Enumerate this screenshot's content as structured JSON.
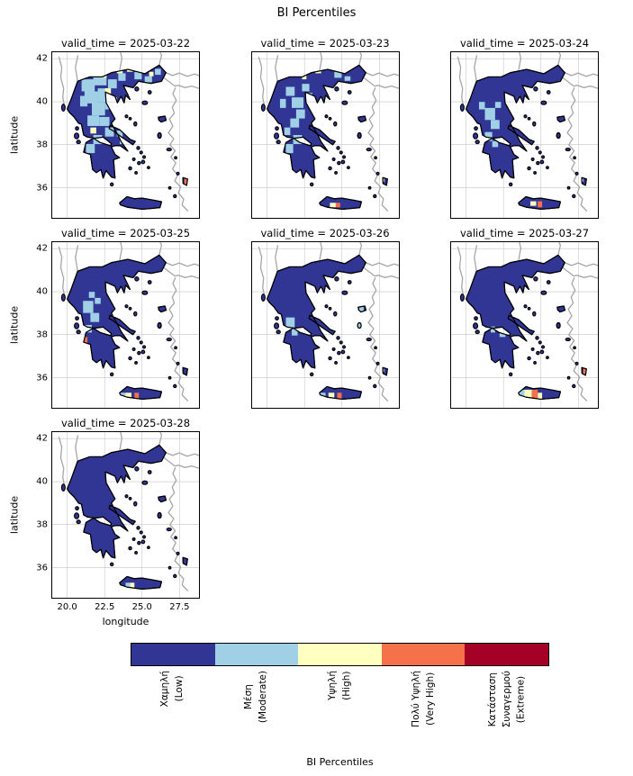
{
  "figure": {
    "title": "BI Percentiles",
    "background": "#ffffff"
  },
  "axes": {
    "xlabel": "longitude",
    "ylabel": "latitude",
    "xticks": [
      {
        "label": "20.0",
        "value": 20.0
      },
      {
        "label": "22.5",
        "value": 22.5
      },
      {
        "label": "25.0",
        "value": 25.0
      },
      {
        "label": "27.5",
        "value": 27.5
      }
    ],
    "yticks": [
      {
        "label": "42",
        "value": 42
      },
      {
        "label": "40",
        "value": 40
      },
      {
        "label": "38",
        "value": 38
      },
      {
        "label": "36",
        "value": 36
      }
    ]
  },
  "map_colors": {
    "land": "#313695",
    "coast": "#000000",
    "neighbor": "#a6a6a6",
    "grid": "#c4c4c4",
    "sea": "#ffffff"
  },
  "colorbar": {
    "label": "BI Percentiles",
    "classes": [
      {
        "key": "low",
        "color": "#313695",
        "lines": [
          "Χαμηλή",
          "(Low)"
        ]
      },
      {
        "key": "moderate",
        "color": "#9fd0e6",
        "lines": [
          "Μέση",
          "(Moderate)"
        ]
      },
      {
        "key": "high",
        "color": "#ffffbf",
        "lines": [
          "Υψηλή",
          "(High)"
        ]
      },
      {
        "key": "very-high",
        "color": "#f5714a",
        "lines": [
          "Πολύ Υψηλή",
          "(Very High)"
        ]
      },
      {
        "key": "extreme",
        "color": "#a50026",
        "lines": [
          "Κατάσταση",
          "Συναγερμού",
          "(Extreme)"
        ]
      }
    ]
  },
  "panels": [
    {
      "date": "2025-03-22",
      "title": "valid_time = 2025-03-22",
      "row": 0,
      "col": 0,
      "show_yticks": true,
      "show_xticks": false,
      "patches": [
        [
          19,
          29,
          5,
          7,
          1
        ],
        [
          20,
          18,
          9,
          8,
          1
        ],
        [
          28,
          15,
          9,
          7,
          1
        ],
        [
          22,
          26,
          9,
          8,
          1
        ],
        [
          31,
          24,
          8,
          9,
          1
        ],
        [
          27,
          33,
          9,
          9,
          1
        ],
        [
          36,
          31,
          6,
          7,
          1
        ],
        [
          24,
          42,
          8,
          7,
          1
        ],
        [
          32,
          43,
          7,
          6,
          1
        ],
        [
          38,
          18,
          6,
          6,
          1
        ],
        [
          45,
          14,
          5,
          5,
          1
        ],
        [
          36,
          50,
          6,
          6,
          1
        ],
        [
          28,
          55,
          6,
          6,
          1
        ],
        [
          23,
          61,
          6,
          6,
          1
        ],
        [
          56,
          13,
          5,
          5,
          1
        ],
        [
          63,
          16,
          5,
          4,
          1
        ],
        [
          70,
          11,
          4,
          4,
          1
        ],
        [
          44,
          52,
          4,
          4,
          1
        ],
        [
          46,
          58,
          3,
          3,
          1
        ],
        [
          36,
          24,
          4,
          4,
          2
        ],
        [
          33,
          13,
          4,
          4,
          2
        ],
        [
          44,
          11,
          4,
          3,
          2
        ],
        [
          51,
          11,
          4,
          2,
          2
        ],
        [
          57,
          10,
          4,
          2,
          2
        ],
        [
          66,
          13,
          3,
          3,
          2
        ],
        [
          41,
          30,
          3,
          3,
          2
        ],
        [
          26,
          50,
          4,
          4,
          2
        ],
        [
          30,
          12,
          3,
          3,
          3
        ],
        [
          40,
          11,
          3,
          2,
          3
        ],
        [
          47,
          10,
          3,
          2,
          3
        ],
        [
          61,
          10,
          4,
          3,
          3
        ],
        [
          90,
          84,
          3,
          4,
          3
        ]
      ]
    },
    {
      "date": "2025-03-23",
      "title": "valid_time = 2025-03-23",
      "row": 0,
      "col": 1,
      "show_yticks": false,
      "show_xticks": false,
      "patches": [
        [
          23,
          23,
          6,
          6,
          1
        ],
        [
          27,
          30,
          8,
          7,
          1
        ],
        [
          30,
          38,
          6,
          6,
          1
        ],
        [
          26,
          44,
          6,
          6,
          1
        ],
        [
          34,
          21,
          5,
          5,
          1
        ],
        [
          56,
          13,
          5,
          4,
          1
        ],
        [
          63,
          16,
          4,
          3,
          1
        ],
        [
          28,
          55,
          6,
          6,
          1
        ],
        [
          23,
          61,
          5,
          6,
          1
        ],
        [
          19,
          31,
          4,
          6,
          1
        ],
        [
          37,
          27,
          4,
          4,
          1
        ],
        [
          22,
          50,
          4,
          5,
          1
        ],
        [
          43,
          12,
          4,
          2,
          2
        ],
        [
          34,
          15,
          3,
          3,
          2
        ],
        [
          53,
          100,
          4,
          3,
          2
        ],
        [
          88,
          84,
          2,
          2,
          2
        ],
        [
          57,
          100,
          3,
          3,
          3
        ]
      ]
    },
    {
      "date": "2025-03-24",
      "title": "valid_time = 2025-03-24",
      "row": 0,
      "col": 2,
      "show_yticks": false,
      "show_xticks": false,
      "patches": [
        [
          23,
          37,
          7,
          8,
          1
        ],
        [
          27,
          45,
          6,
          6,
          1
        ],
        [
          23,
          53,
          5,
          6,
          1
        ],
        [
          30,
          33,
          4,
          4,
          1
        ],
        [
          19,
          33,
          4,
          5,
          1
        ],
        [
          28,
          59,
          4,
          4,
          1
        ],
        [
          54,
          99,
          4,
          3,
          2
        ],
        [
          88,
          84,
          2,
          2,
          2
        ],
        [
          59,
          99,
          3,
          4,
          3
        ]
      ]
    },
    {
      "date": "2025-03-25",
      "title": "valid_time = 2025-03-25",
      "row": 1,
      "col": 0,
      "show_yticks": true,
      "show_xticks": false,
      "patches": [
        [
          21,
          39,
          7,
          8,
          1
        ],
        [
          26,
          47,
          6,
          6,
          1
        ],
        [
          22,
          55,
          5,
          5,
          1
        ],
        [
          29,
          37,
          4,
          4,
          1
        ],
        [
          25,
          33,
          4,
          4,
          1
        ],
        [
          46,
          100,
          4,
          3,
          1
        ],
        [
          50,
          100,
          4,
          3,
          2
        ],
        [
          21,
          63,
          3,
          4,
          3
        ],
        [
          56,
          100,
          3,
          4,
          3
        ]
      ]
    },
    {
      "date": "2025-03-26",
      "title": "valid_time = 2025-03-26",
      "row": 1,
      "col": 1,
      "show_yticks": false,
      "show_xticks": false,
      "patches": [
        [
          23,
          50,
          6,
          7,
          1
        ],
        [
          27,
          57,
          4,
          5,
          1
        ],
        [
          46,
          100,
          4,
          4,
          1
        ],
        [
          73,
          43,
          3,
          3,
          1
        ],
        [
          72,
          54,
          2,
          3,
          1
        ],
        [
          88,
          84,
          2,
          2,
          1
        ],
        [
          52,
          100,
          4,
          4,
          2
        ],
        [
          58,
          100,
          3,
          4,
          3
        ]
      ]
    },
    {
      "date": "2025-03-27",
      "title": "valid_time = 2025-03-27",
      "row": 1,
      "col": 2,
      "show_yticks": false,
      "show_xticks": false,
      "patches": [
        [
          45,
          98,
          5,
          6,
          1
        ],
        [
          33,
          59,
          4,
          4,
          1
        ],
        [
          27,
          56,
          3,
          4,
          1
        ],
        [
          50,
          98,
          5,
          6,
          2
        ],
        [
          59,
          100,
          3,
          4,
          2
        ],
        [
          55,
          98,
          4,
          6,
          3
        ],
        [
          90,
          84,
          3,
          4,
          3
        ]
      ]
    },
    {
      "date": "2025-03-28",
      "title": "valid_time = 2025-03-28",
      "row": 2,
      "col": 0,
      "show_yticks": true,
      "show_xticks": true,
      "patches": [
        [
          50,
          100,
          3,
          4,
          1
        ],
        [
          53,
          100,
          3,
          4,
          2
        ]
      ]
    }
  ],
  "chart_data": {
    "type": "heatmap",
    "title": "BI Percentiles",
    "facet_variable": "valid_time",
    "xlabel": "longitude",
    "ylabel": "latitude",
    "xlim": [
      19.0,
      28.8
    ],
    "ylim": [
      34.6,
      42.3
    ],
    "xticks": [
      20.0,
      22.5,
      25.0,
      27.5
    ],
    "yticks": [
      36,
      38,
      40,
      42
    ],
    "grid": true,
    "legend_position": "bottom horizontal colorbar",
    "region": "Greece",
    "categories": [
      "Χαμηλή (Low)",
      "Μέση (Moderate)",
      "Υψηλή (High)",
      "Πολύ Υψηλή (Very High)",
      "Κατάσταση Συναγερμού (Extreme)"
    ],
    "category_colors": [
      "#313695",
      "#9fd0e6",
      "#ffffbf",
      "#f5714a",
      "#a50026"
    ],
    "facets": [
      {
        "valid_time": "2025-03-22",
        "dominant_class": "Χαμηλή (Low)",
        "other_classes": "extensive Μέση over N and C mainland; scattered Υψηλή and Πολύ Υψηλή cells along the northern border; Πολύ Υψηλή on Rhodes"
      },
      {
        "valid_time": "2025-03-23",
        "dominant_class": "Χαμηλή (Low)",
        "other_classes": "Μέση patches over C mainland and NW Peloponnese; Υψηλή specks in NE; Πολύ Υψηλή speck on S Crete"
      },
      {
        "valid_time": "2025-03-24",
        "dominant_class": "Χαμηλή (Low)",
        "other_classes": "few Μέση patches over W-C mainland; Υψηλή and Πολύ Υψηλή specks on Crete"
      },
      {
        "valid_time": "2025-03-25",
        "dominant_class": "Χαμηλή (Low)",
        "other_classes": "Μέση over W-C mainland; Πολύ Υψηλή speck on W Peloponnese coast; Υψηλή/Πολύ Υψηλή on Crete"
      },
      {
        "valid_time": "2025-03-26",
        "dominant_class": "Χαμηλή (Low)",
        "other_classes": "small Μέση areas SW mainland; Μέση to Πολύ Υψηλή band on Crete; Μέση on E Aegean islands"
      },
      {
        "valid_time": "2025-03-27",
        "dominant_class": "Χαμηλή (Low)",
        "other_classes": "Μέση to Πολύ Υψηλή band on central Crete; Πολύ Υψηλή on Rhodes"
      },
      {
        "valid_time": "2025-03-28",
        "dominant_class": "Χαμηλή (Low)",
        "other_classes": "nearly all Χαμηλή; small Μέση/Υψηλή speck on Crete"
      }
    ]
  }
}
